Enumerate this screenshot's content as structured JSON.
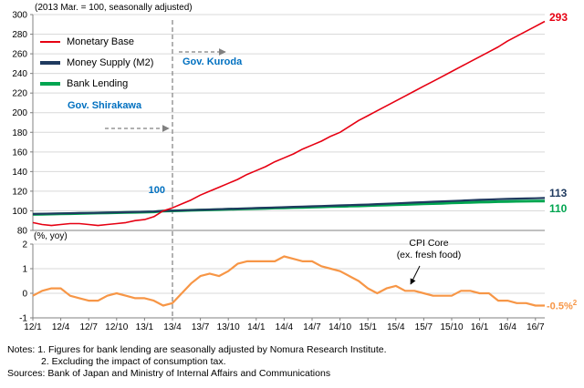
{
  "colors": {
    "annotation": "#0070c0",
    "grid": "#d9d9d9",
    "axis": "#808080",
    "dashed_line": "#808080",
    "text": "#000000"
  },
  "annotations": {
    "kuroda": "Gov. Kuroda",
    "shirakawa": "Gov. Shirakawa",
    "base_label": "100",
    "end_monetary": "293",
    "end_m2": "113",
    "end_lending": "110",
    "cpi_line1": "CPI Core",
    "cpi_line2": "(ex. fresh food)",
    "cpi_end": "-0.5%",
    "cpi_end_sup": "2"
  },
  "notes": {
    "line1": "Notes: 1. Figures for bank lending are seasonally adjusted by Nomura Research Institute.",
    "line2": "2. Excluding the impact of consumption tax.",
    "line3": "Sources: Bank of Japan and Ministry of Internal Affairs and Communications"
  },
  "chart_data": [
    {
      "type": "line",
      "title": "(2013 Mar. = 100, seasonally adjusted)",
      "ylim": [
        80,
        300
      ],
      "yticks": [
        80,
        100,
        120,
        140,
        160,
        180,
        200,
        220,
        240,
        260,
        280,
        300
      ],
      "x_tick_every": 3,
      "vline_x": "13/4",
      "grid": true,
      "legend_position": "top-left",
      "x": [
        "12/1",
        "12/2",
        "12/3",
        "12/4",
        "12/5",
        "12/6",
        "12/7",
        "12/8",
        "12/9",
        "12/10",
        "12/11",
        "12/12",
        "13/1",
        "13/2",
        "13/3",
        "13/4",
        "13/5",
        "13/6",
        "13/7",
        "13/8",
        "13/9",
        "13/10",
        "13/11",
        "13/12",
        "14/1",
        "14/2",
        "14/3",
        "14/4",
        "14/5",
        "14/6",
        "14/7",
        "14/8",
        "14/9",
        "14/10",
        "14/11",
        "14/12",
        "15/1",
        "15/2",
        "15/3",
        "15/4",
        "15/5",
        "15/6",
        "15/7",
        "15/8",
        "15/9",
        "15/10",
        "15/11",
        "15/12",
        "16/1",
        "16/2",
        "16/3",
        "16/4",
        "16/5",
        "16/6",
        "16/7",
        "16/8"
      ],
      "series": [
        {
          "name": "Monetary Base",
          "color": "#e60012",
          "values": [
            88,
            86,
            85,
            86,
            87,
            87,
            86,
            85,
            86,
            87,
            88,
            90,
            91,
            94,
            100,
            103,
            107,
            111,
            116,
            120,
            124,
            128,
            132,
            137,
            141,
            145,
            150,
            154,
            158,
            163,
            167,
            171,
            176,
            180,
            186,
            192,
            197,
            202,
            207,
            212,
            217,
            222,
            227,
            232,
            237,
            242,
            247,
            252,
            257,
            262,
            267,
            273,
            278,
            283,
            288,
            293
          ]
        },
        {
          "name": "Money Supply (M2)",
          "color": "#1f3a5f",
          "values": [
            96.8,
            97.0,
            97.2,
            97.4,
            97.5,
            97.7,
            97.8,
            98.0,
            98.2,
            98.4,
            98.6,
            98.8,
            99.0,
            99.3,
            100.0,
            100.1,
            100.4,
            100.7,
            101.0,
            101.3,
            101.6,
            101.9,
            102.2,
            102.5,
            102.8,
            103.1,
            103.4,
            103.7,
            104.0,
            104.3,
            104.6,
            104.9,
            105.2,
            105.5,
            105.8,
            106.1,
            106.4,
            106.8,
            107.2,
            107.6,
            108.0,
            108.4,
            108.8,
            109.2,
            109.6,
            110.0,
            110.4,
            110.8,
            111.2,
            111.5,
            111.8,
            112.1,
            112.4,
            112.6,
            112.8,
            113.0
          ]
        },
        {
          "name": "Bank Lending",
          "color": "#00a550",
          "values": [
            96.3,
            96.5,
            96.7,
            96.9,
            97.1,
            97.3,
            97.5,
            97.7,
            97.9,
            98.1,
            98.3,
            98.5,
            98.7,
            98.9,
            99.7,
            100.0,
            100.2,
            100.5,
            100.8,
            101.0,
            101.3,
            101.5,
            101.8,
            102.0,
            102.3,
            102.5,
            102.8,
            103.0,
            103.3,
            103.5,
            103.8,
            104.0,
            104.3,
            104.5,
            104.8,
            105.0,
            105.3,
            105.6,
            105.9,
            106.2,
            106.5,
            106.8,
            107.1,
            107.4,
            107.7,
            108.0,
            108.3,
            108.6,
            108.9,
            109.1,
            109.3,
            109.5,
            109.7,
            109.8,
            109.9,
            110.0
          ]
        }
      ]
    },
    {
      "type": "line",
      "ylabel": "(%, yoy)",
      "ylim": [
        -1,
        2
      ],
      "yticks": [
        -1,
        0,
        1,
        2
      ],
      "grid": true,
      "series": [
        {
          "name": "CPI Core (ex. fresh food)",
          "color": "#f79646",
          "values": [
            -0.1,
            0.1,
            0.2,
            0.2,
            -0.1,
            -0.2,
            -0.3,
            -0.3,
            -0.1,
            0.0,
            -0.1,
            -0.2,
            -0.2,
            -0.3,
            -0.5,
            -0.4,
            0.0,
            0.4,
            0.7,
            0.8,
            0.7,
            0.9,
            1.2,
            1.3,
            1.3,
            1.3,
            1.3,
            1.5,
            1.4,
            1.3,
            1.3,
            1.1,
            1.0,
            0.9,
            0.7,
            0.5,
            0.2,
            0.0,
            0.2,
            0.3,
            0.1,
            0.1,
            0.0,
            -0.1,
            -0.1,
            -0.1,
            0.1,
            0.1,
            0.0,
            0.0,
            -0.3,
            -0.3,
            -0.4,
            -0.4,
            -0.5,
            -0.5
          ]
        }
      ]
    }
  ]
}
